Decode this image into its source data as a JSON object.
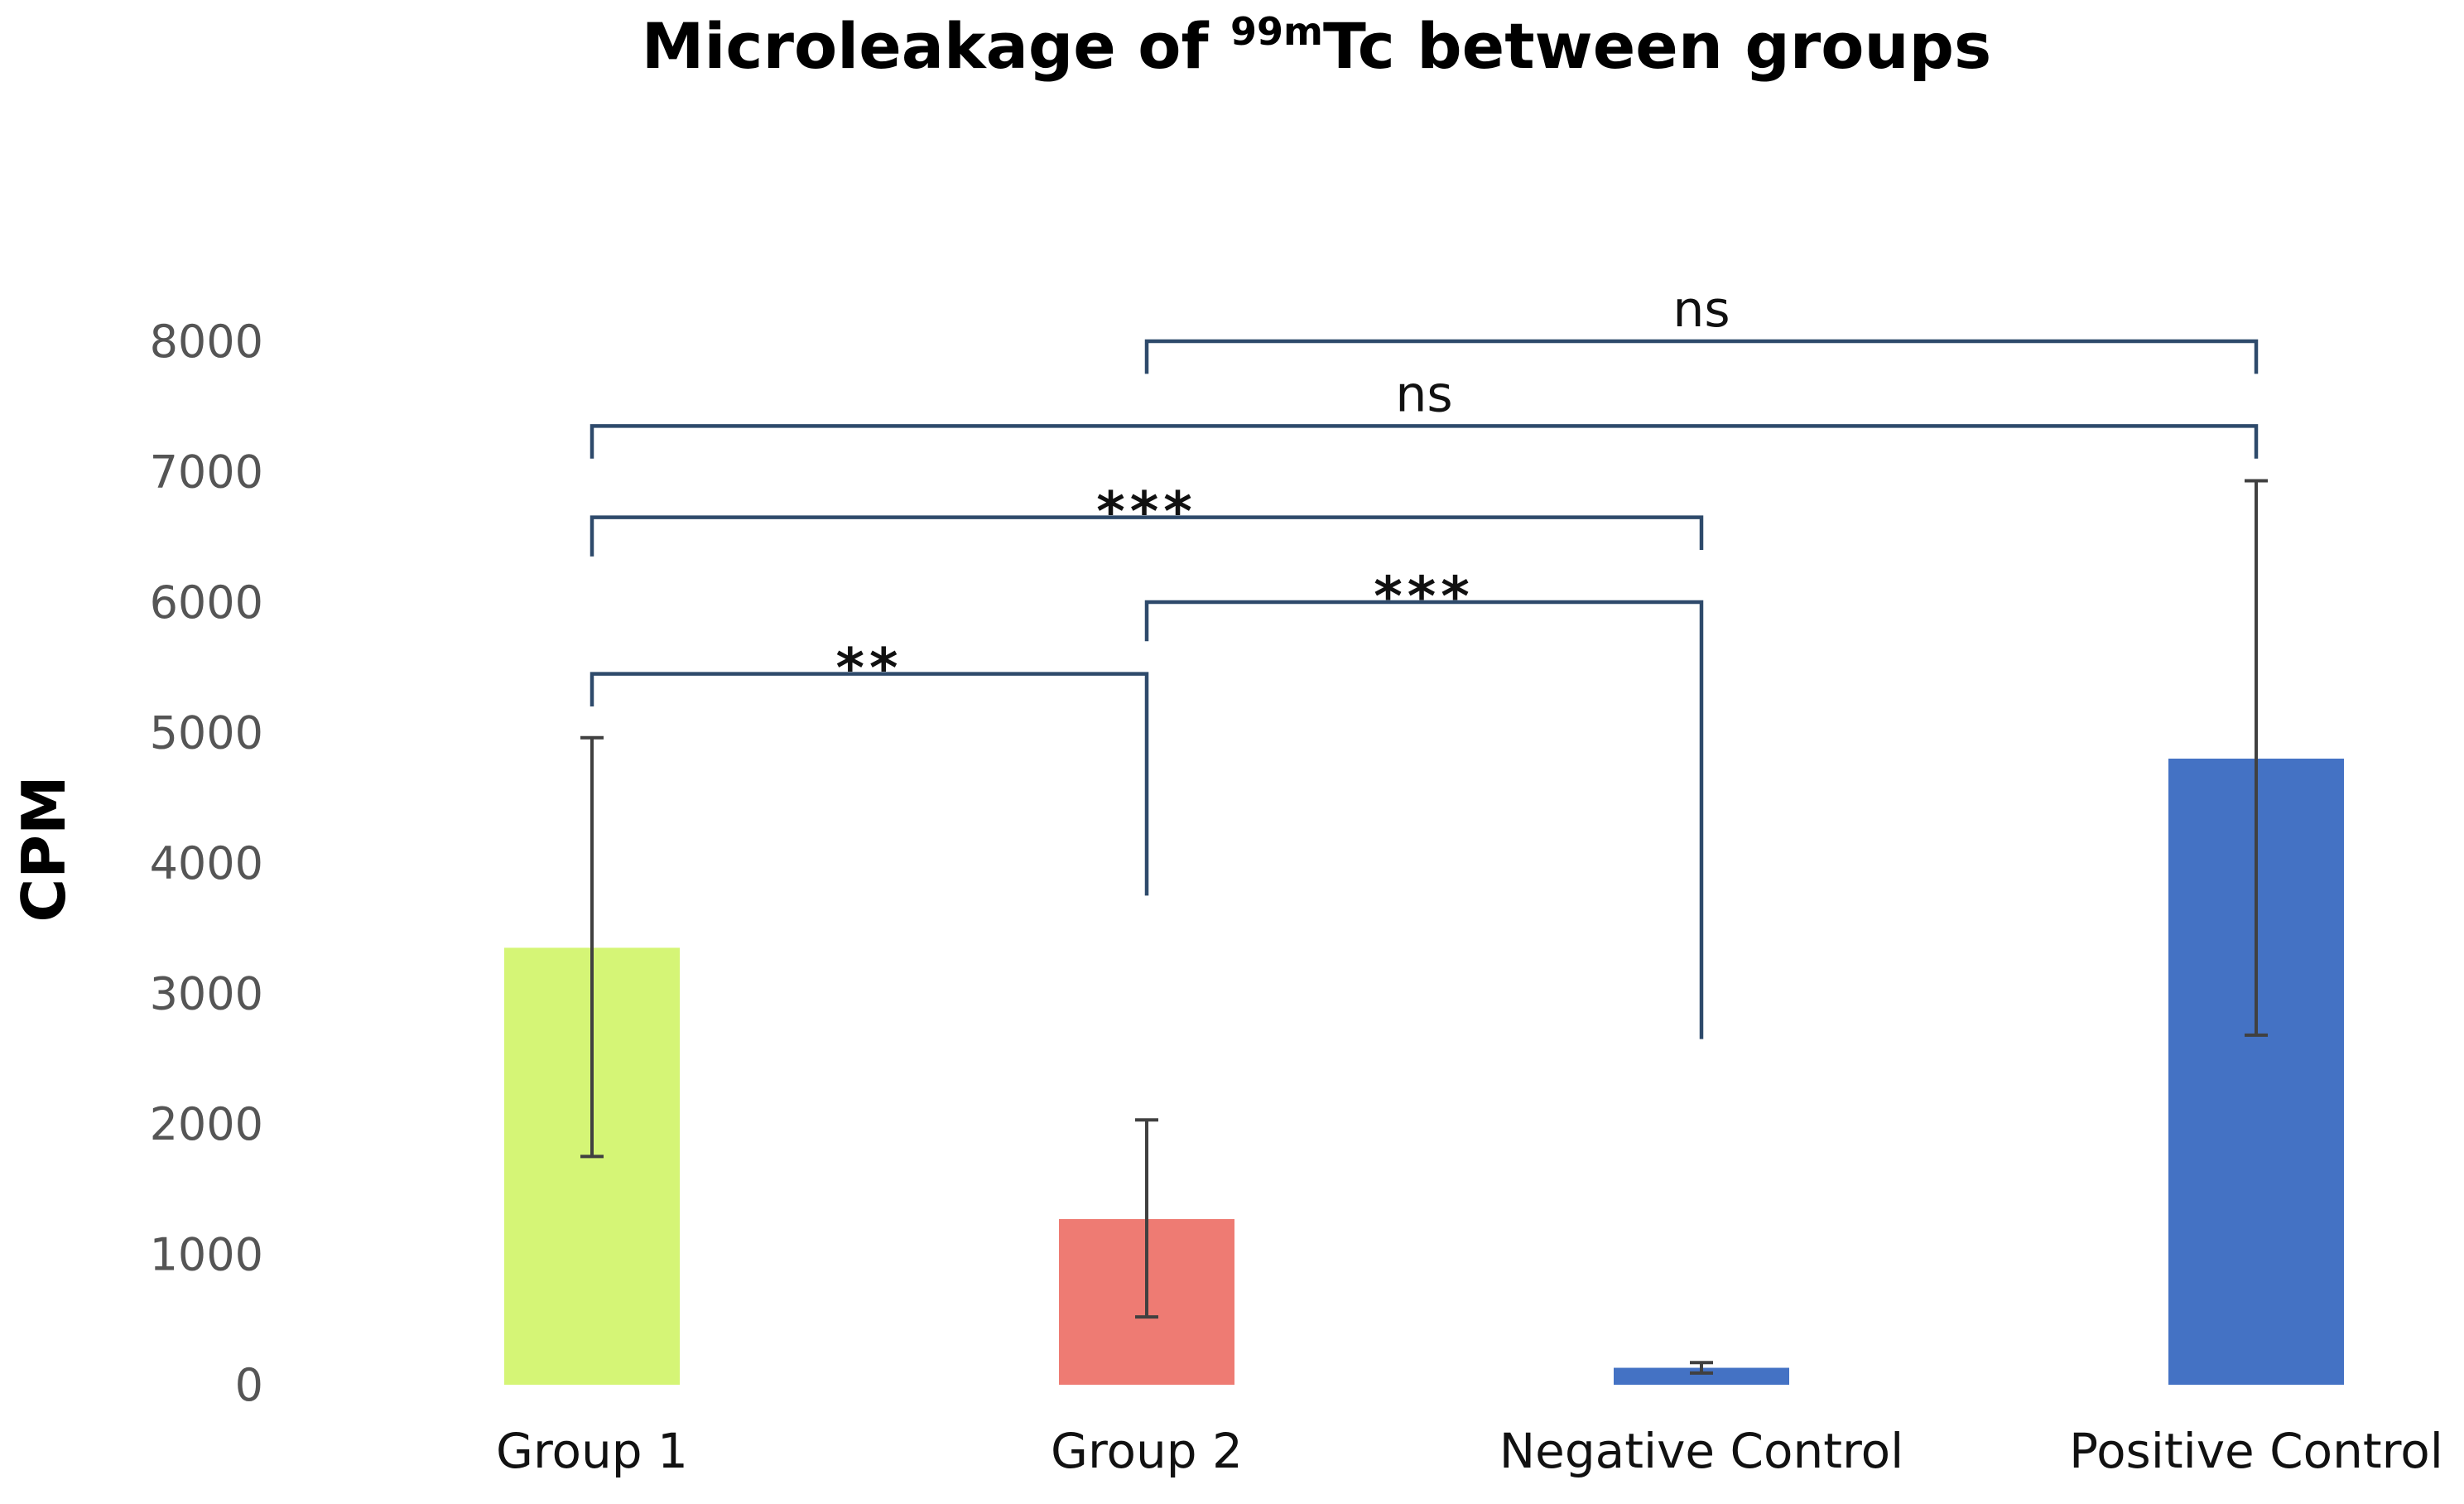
{
  "chart_data": {
    "type": "bar",
    "title": {
      "prefix": "Microleakage of ",
      "superscript": "99m",
      "suffix": "Tc between groups"
    },
    "xlabel": "",
    "ylabel": "CPM",
    "ylim": [
      0,
      8000
    ],
    "yticks": [
      0,
      1000,
      2000,
      3000,
      4000,
      5000,
      6000,
      7000,
      8000
    ],
    "grid": false,
    "categories": [
      "Group 1",
      "Group 2",
      "Negative Control",
      "Positive Control"
    ],
    "values": [
      3350,
      1270,
      130,
      4800
    ],
    "error_low": [
      1750,
      520,
      90,
      2680
    ],
    "error_high": [
      4960,
      2030,
      170,
      6930
    ],
    "colors": [
      "#d5f576",
      "#ee7b73",
      "#4472c4",
      "#4472c4"
    ],
    "error_color": "#404040",
    "bracket_color": "#2e4a6b",
    "comparisons": [
      {
        "from": 0,
        "to": 1,
        "label": "**",
        "level": 5450,
        "left_foot": 5200,
        "right_foot": 3750
      },
      {
        "from": 1,
        "to": 2,
        "label": "***",
        "level": 6000,
        "left_foot": 5700,
        "right_foot": 2650
      },
      {
        "from": 0,
        "to": 2,
        "label": "***",
        "level": 6650,
        "left_foot": 6350,
        "right_foot": 6400
      },
      {
        "from": 0,
        "to": 3,
        "label": "ns",
        "level": 7350,
        "left_foot": 7100,
        "right_foot": 7100
      },
      {
        "from": 1,
        "to": 3,
        "label": "ns",
        "level": 8000,
        "left_foot": 7750,
        "right_foot": 7750
      }
    ]
  }
}
